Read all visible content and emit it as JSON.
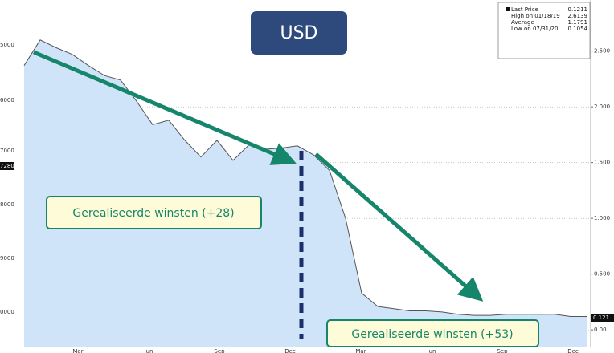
{
  "chart_data": {
    "type": "area",
    "title": "USD",
    "series": [
      {
        "name": "Last Price",
        "color": "#555555",
        "fill": "#cfe4f8",
        "values": [
          2.37,
          2.6,
          2.53,
          2.47,
          2.37,
          2.28,
          2.24,
          2.05,
          1.84,
          1.88,
          1.7,
          1.55,
          1.7,
          1.52,
          1.66,
          1.62,
          1.63,
          1.65,
          1.57,
          1.43,
          1.0,
          0.33,
          0.21,
          0.19,
          0.17,
          0.17,
          0.16,
          0.14,
          0.13,
          0.13,
          0.14,
          0.14,
          0.14,
          0.14,
          0.12,
          0.12
        ]
      }
    ],
    "ylim": [
      -0.15,
      2.85
    ],
    "yticks": [
      {
        "value": 0,
        "label": "0.00"
      },
      {
        "value": 0.5,
        "label": "0.500"
      },
      {
        "value": 1,
        "label": "1.000"
      },
      {
        "value": 1.5,
        "label": "1.500"
      },
      {
        "value": 2,
        "label": "2.000"
      },
      {
        "value": 2.5,
        "label": "2.500"
      }
    ],
    "grid": true,
    "left_axis_labels": [
      "5000",
      "6000",
      "7000",
      "8000",
      "9000",
      "0000"
    ],
    "left_tag": "7280",
    "last_price_tag": "0.121",
    "x_labels": [
      "Mar",
      "Jun",
      "Sep",
      "Dec",
      "Mar",
      "Jun",
      "Sep",
      "Dec"
    ],
    "legend": [
      {
        "label": "Last Price",
        "value": "0.1211"
      },
      {
        "label": "High on 01/18/19",
        "value": "2.6139"
      },
      {
        "label": "Average",
        "value": "1.1791"
      },
      {
        "label": "Low on 07/31/20",
        "value": "0.1054"
      }
    ],
    "annotations": [
      "Gerealiseerde winsten (+28)",
      "Gerealiseerde winsten (+53)"
    ]
  }
}
